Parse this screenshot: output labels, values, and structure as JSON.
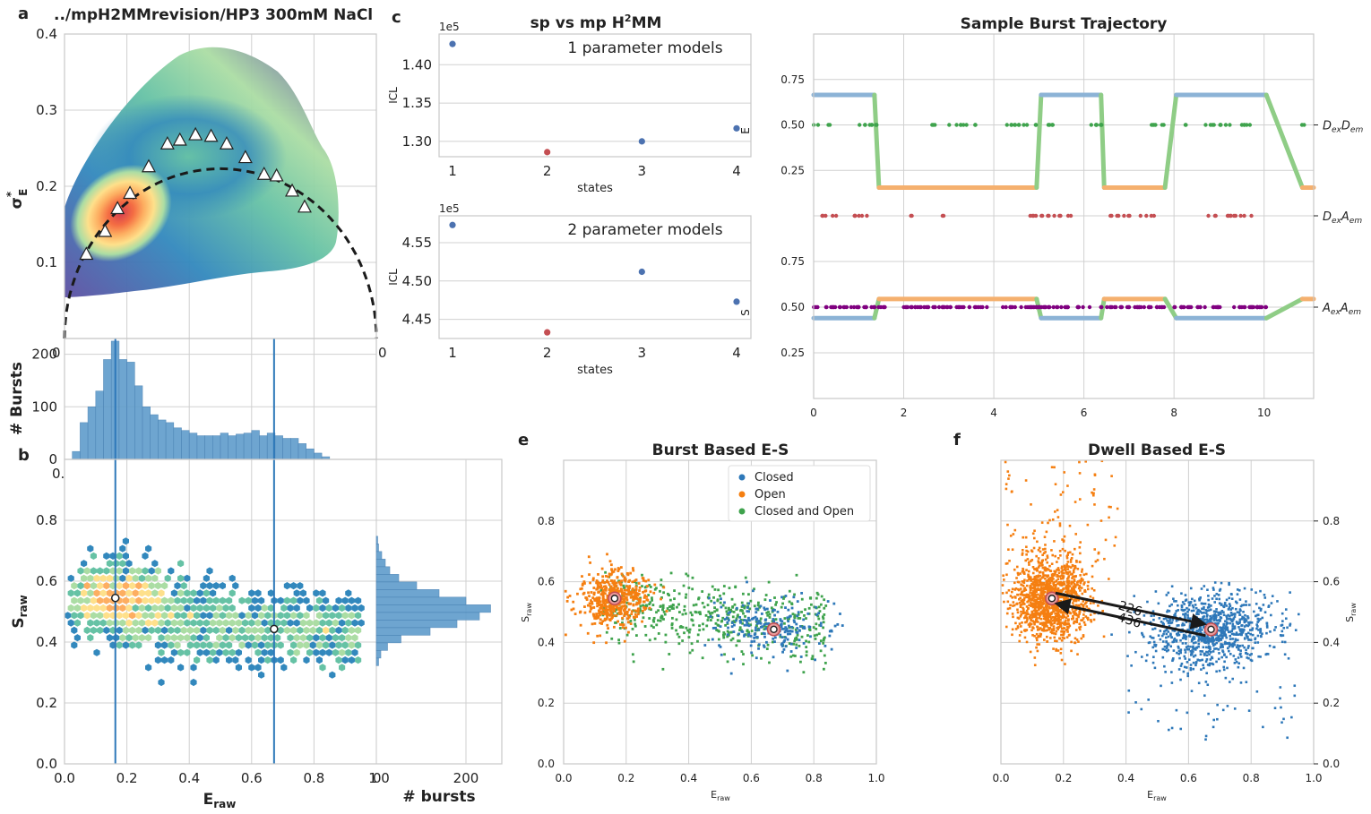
{
  "figure": {
    "panel_letters": [
      "a",
      "b",
      "c",
      "e",
      "f"
    ]
  },
  "colors": {
    "blue": "#2e78b9",
    "orange": "#f57f11",
    "green": "#3fa34d",
    "red": "#c44e52",
    "purple": "#800080",
    "series_blue": "#4c72b0",
    "hist": "#5f9ccb",
    "grid": "#d0d0d0",
    "axis": "#c8c8c8",
    "line_blue": "#8cb3d6",
    "line_orange": "#f5b06e",
    "line_green": "#8fcd86"
  },
  "chart_data": [
    {
      "id": "a",
      "type": "heatmap",
      "title": "../mpH2MMrevision/HP3 300mM NaCl",
      "ylabel_main": "σ",
      "ylabel_sup": "*",
      "ylabel_sub": "E",
      "ylim": [
        0,
        0.4
      ],
      "xlim": [
        0,
        1
      ],
      "yticks": [
        "0.1",
        "0.2",
        "0.3",
        "0.4"
      ],
      "xticks_partial": [
        "0",
        "0"
      ],
      "triangles": [
        [
          0.07,
          0.11
        ],
        [
          0.13,
          0.14
        ],
        [
          0.17,
          0.17
        ],
        [
          0.21,
          0.19
        ],
        [
          0.27,
          0.225
        ],
        [
          0.33,
          0.255
        ],
        [
          0.37,
          0.26
        ],
        [
          0.42,
          0.267
        ],
        [
          0.47,
          0.265
        ],
        [
          0.52,
          0.255
        ],
        [
          0.58,
          0.237
        ],
        [
          0.64,
          0.215
        ],
        [
          0.68,
          0.213
        ],
        [
          0.73,
          0.193
        ],
        [
          0.77,
          0.172
        ]
      ],
      "curve": "dashed semicircle"
    },
    {
      "id": "b-top",
      "type": "bar",
      "ylabel": "# Bursts",
      "ylim": [
        0,
        230
      ],
      "yticks": [
        "0",
        "100",
        "200"
      ],
      "xtick_partial": "0.",
      "bins_x_start": 0.0,
      "bin_width": 0.025,
      "values": [
        0,
        15,
        70,
        100,
        130,
        190,
        225,
        190,
        185,
        140,
        100,
        85,
        75,
        70,
        60,
        55,
        50,
        45,
        45,
        45,
        50,
        45,
        48,
        50,
        55,
        45,
        50,
        45,
        40,
        40,
        30,
        20,
        12,
        5,
        0
      ],
      "vlines": [
        0.163,
        0.672
      ]
    },
    {
      "id": "b",
      "type": "heatmap",
      "xlabel": "E",
      "xlabel_sub": "raw",
      "ylabel": "S",
      "ylabel_sub": "raw",
      "xlim": [
        0,
        1
      ],
      "ylim": [
        0,
        1
      ],
      "xticks": [
        "0.0",
        "0.2",
        "0.4",
        "0.6",
        "0.8",
        "1"
      ],
      "yticks": [
        "0.0",
        "0.2",
        "0.4",
        "0.6",
        "0.8"
      ],
      "centers": [
        [
          0.163,
          0.545
        ],
        [
          0.672,
          0.443
        ]
      ],
      "vlines": [
        0.163,
        0.672
      ]
    },
    {
      "id": "b-right",
      "type": "bar",
      "xlabel": "# bursts",
      "xticks": [
        "0",
        "200"
      ],
      "xtick_left_partial": "0",
      "bins_y_start": 0.2,
      "bin_width": 0.025,
      "values": [
        0,
        0,
        0,
        0,
        0,
        0,
        0,
        0,
        0,
        0,
        0,
        0,
        0,
        0,
        0,
        0,
        0,
        0,
        0,
        0,
        0,
        0,
        0,
        0,
        0,
        0,
        0,
        0,
        0,
        0,
        0,
        0,
        0,
        0
      ],
      "profile": [
        [
          0.335,
          5
        ],
        [
          0.36,
          10
        ],
        [
          0.385,
          25
        ],
        [
          0.41,
          55
        ],
        [
          0.435,
          120
        ],
        [
          0.46,
          180
        ],
        [
          0.485,
          230
        ],
        [
          0.51,
          255
        ],
        [
          0.535,
          200
        ],
        [
          0.56,
          140
        ],
        [
          0.585,
          90
        ],
        [
          0.61,
          50
        ],
        [
          0.635,
          30
        ],
        [
          0.66,
          20
        ],
        [
          0.685,
          12
        ],
        [
          0.71,
          5
        ],
        [
          0.735,
          3
        ]
      ]
    },
    {
      "id": "c1",
      "type": "scatter",
      "title": "sp vs mp H",
      "title_sup": "2",
      "title_end": "MM",
      "annotation": "1 parameter models",
      "offset": "1e5",
      "ylabel": "ICL",
      "right_label": "E",
      "xlabel": "states",
      "xticks": [
        "1",
        "2",
        "3",
        "4"
      ],
      "yticks": [
        "1.30",
        "1.35",
        "1.40"
      ],
      "ylim": [
        1.28,
        1.44
      ],
      "points": [
        {
          "x": 1,
          "y": 1.427,
          "c": "series_blue"
        },
        {
          "x": 2,
          "y": 1.286,
          "c": "red"
        },
        {
          "x": 3,
          "y": 1.3,
          "c": "series_blue"
        },
        {
          "x": 4,
          "y": 1.317,
          "c": "series_blue"
        }
      ]
    },
    {
      "id": "c2",
      "type": "scatter",
      "annotation": "2 parameter models",
      "offset": "1e5",
      "ylabel": "ICL",
      "right_label": "S",
      "xlabel": "states",
      "xticks": [
        "1",
        "2",
        "3",
        "4"
      ],
      "yticks": [
        "4.45",
        "4.50",
        "4.55"
      ],
      "ylim": [
        4.425,
        4.585
      ],
      "points": [
        {
          "x": 1,
          "y": 4.573,
          "c": "series_blue"
        },
        {
          "x": 2,
          "y": 4.433,
          "c": "red"
        },
        {
          "x": 3,
          "y": 4.512,
          "c": "series_blue"
        },
        {
          "x": 4,
          "y": 4.473,
          "c": "series_blue"
        }
      ]
    },
    {
      "id": "d",
      "type": "line",
      "title": "Sample Burst Trajectory",
      "xlim": [
        0,
        11.1
      ],
      "xticks": [
        "0",
        "2",
        "4",
        "6",
        "8",
        "10"
      ],
      "yticks_top": [
        "0.25",
        "0.50",
        "0.75"
      ],
      "yticks_bottom": [
        "0.25",
        "0.50",
        "0.75"
      ],
      "stream_labels": [
        "DexDem",
        "DexAem",
        "AexAem"
      ],
      "stream_label_parts": [
        [
          "D",
          "ex",
          "D",
          "em"
        ],
        [
          "D",
          "ex",
          "A",
          "em"
        ],
        [
          "A",
          "ex",
          "A",
          "em"
        ]
      ],
      "segments": [
        {
          "x0": 0.0,
          "x1": 1.35,
          "state": "blue"
        },
        {
          "x0": 1.35,
          "x1": 1.45,
          "state": "trans"
        },
        {
          "x0": 1.45,
          "x1": 4.95,
          "state": "orange"
        },
        {
          "x0": 4.95,
          "x1": 5.05,
          "state": "trans"
        },
        {
          "x0": 5.05,
          "x1": 6.38,
          "state": "blue"
        },
        {
          "x0": 6.38,
          "x1": 6.45,
          "state": "trans"
        },
        {
          "x0": 6.45,
          "x1": 7.8,
          "state": "orange"
        },
        {
          "x0": 7.8,
          "x1": 8.05,
          "state": "trans"
        },
        {
          "x0": 8.05,
          "x1": 10.05,
          "state": "blue"
        },
        {
          "x0": 10.05,
          "x1": 10.85,
          "state": "trans"
        },
        {
          "x0": 10.85,
          "x1": 11.1,
          "state": "orange"
        }
      ],
      "levels": {
        "blue_top": 0.665,
        "orange_top": 0.155,
        "blue_bottom": 0.44,
        "orange_bottom": 0.545
      }
    },
    {
      "id": "e",
      "type": "scatter",
      "title": "Burst Based E-S",
      "xlabel": "E",
      "xlabel_sub": "raw",
      "ylabel": "S",
      "ylabel_sub": "raw",
      "xlim": [
        0,
        1
      ],
      "ylim": [
        0,
        1
      ],
      "xticks": [
        "0.0",
        "0.2",
        "0.4",
        "0.6",
        "0.8",
        "1.0"
      ],
      "yticks": [
        "0.0",
        "0.2",
        "0.4",
        "0.6",
        "0.8"
      ],
      "legend": [
        "Closed",
        "Open",
        "Closed and Open"
      ],
      "legend_position": "upper-right",
      "centers": [
        [
          0.163,
          0.545
        ],
        [
          0.672,
          0.443
        ]
      ]
    },
    {
      "id": "f",
      "type": "scatter",
      "title": "Dwell Based E-S",
      "xlabel": "E",
      "xlabel_sub": "raw",
      "ylabel": "S",
      "ylabel_sub": "raw",
      "xlim": [
        0,
        1
      ],
      "ylim": [
        0,
        1
      ],
      "xticks": [
        "0.0",
        "0.2",
        "0.4",
        "0.6",
        "0.8",
        "1.0"
      ],
      "yticks": [
        "0.0",
        "0.2",
        "0.4",
        "0.6",
        "0.8"
      ],
      "centers": [
        [
          0.163,
          0.545
        ],
        [
          0.672,
          0.443
        ]
      ],
      "transitions": [
        {
          "label": "226",
          "from": [
            0.163,
            0.545
          ],
          "to": [
            0.672,
            0.443
          ]
        },
        {
          "label": "436",
          "from": [
            0.672,
            0.443
          ],
          "to": [
            0.163,
            0.545
          ]
        }
      ]
    }
  ]
}
